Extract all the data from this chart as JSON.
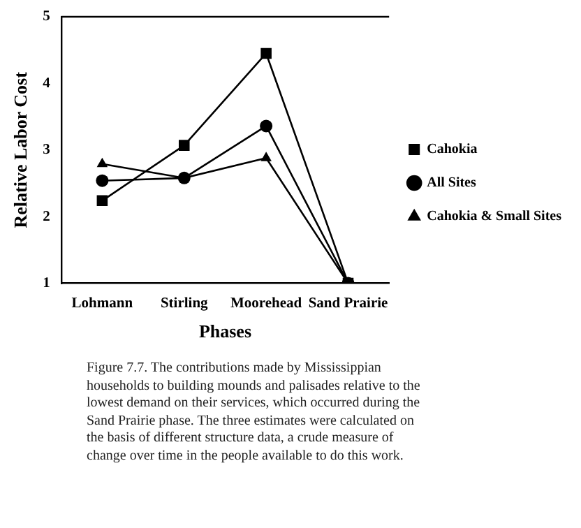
{
  "chart_data": {
    "type": "line",
    "xlabel": "Phases",
    "ylabel": "Relative Labor Cost",
    "categories": [
      "Lohmann",
      "Stirling",
      "Moorehead",
      "Sand Prairie"
    ],
    "series": [
      {
        "name": "Cahokia",
        "color": "#000000",
        "marker": "square",
        "values": [
          2.24,
          3.07,
          4.45,
          1
        ]
      },
      {
        "name": "All Sites",
        "color": "#000000",
        "marker": "circle",
        "values": [
          2.54,
          2.58,
          3.36,
          1
        ]
      },
      {
        "name": "Cahokia & Small Sites",
        "color": "#000000",
        "marker": "triangle",
        "values": [
          2.79,
          2.58,
          2.88,
          1
        ]
      }
    ],
    "ylim": [
      1,
      5
    ],
    "yticks": [
      1,
      2,
      3,
      4,
      5
    ],
    "grid": false,
    "legend": "right",
    "line_style": "solid",
    "annotations": [
      "Figure 7.7. The contributions made by Mississippian households to building mounds and palisades relative to the lowest demand on their services, which occurred during the Sand Prairie phase. The three estimates were calculated on the basis of different structure data, a crude measure of change over time in the people available to do this work."
    ]
  }
}
